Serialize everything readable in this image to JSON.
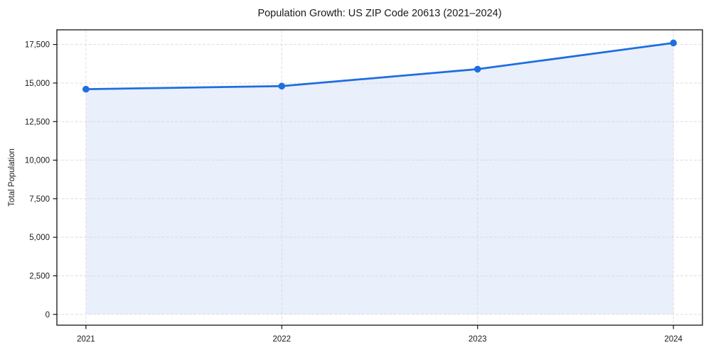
{
  "chart_data": {
    "type": "area",
    "title": "Population Growth: US ZIP Code 20613 (2021–2024)",
    "xlabel": "",
    "ylabel": "Total Population",
    "categories": [
      "2021",
      "2022",
      "2023",
      "2024"
    ],
    "series": [
      {
        "name": "Total Population",
        "values": [
          14600,
          14800,
          15900,
          17600
        ]
      }
    ],
    "y_ticks": [
      0,
      2500,
      5000,
      7500,
      10000,
      12500,
      15000,
      17500
    ],
    "y_tick_labels": [
      "0",
      "2,500",
      "5,000",
      "7,500",
      "10,000",
      "12,500",
      "15,000",
      "17,500"
    ],
    "ylim": [
      -700,
      18450
    ],
    "grid": true,
    "grid_style": "dashed",
    "legend": "none",
    "marker": "circle",
    "colors": {
      "line": "#1e6ee0",
      "marker": "#1e6ee0",
      "area_fill": "#e9effb",
      "grid": "#d8d8d8",
      "axis": "#000000",
      "text": "#1a1a1a",
      "background": "#ffffff"
    }
  }
}
